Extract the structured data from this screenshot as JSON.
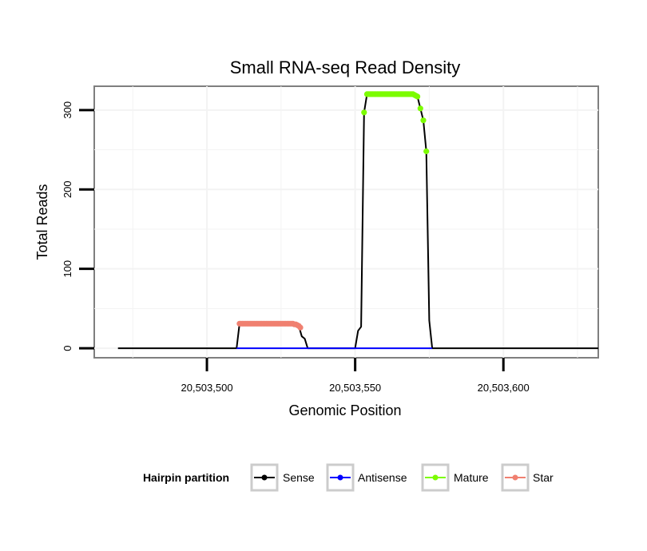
{
  "chart_data": {
    "type": "line",
    "title": "Small RNA-seq Read Density",
    "xlabel": "Genomic Position",
    "ylabel": "Total Reads",
    "xlim": [
      20503462,
      20503632
    ],
    "ylim": [
      -12,
      330
    ],
    "x_ticks": [
      20503500,
      20503550,
      20503600
    ],
    "x_tick_labels": [
      "20,503,500",
      "20,503,550",
      "20,503,600"
    ],
    "y_ticks": [
      0,
      100,
      200,
      300
    ],
    "y_tick_labels": [
      "0",
      "100",
      "200",
      "300"
    ],
    "grid": true,
    "legend": {
      "title": "Hairpin partition",
      "position": "bottom",
      "entries": [
        {
          "label": "Sense",
          "color": "#000000"
        },
        {
          "label": "Antisense",
          "color": "#0000ff"
        },
        {
          "label": "Mature",
          "color": "#7cfc00"
        },
        {
          "label": "Star",
          "color": "#f08070"
        }
      ]
    },
    "series": [
      {
        "name": "Sense",
        "color": "#000000",
        "x": [
          20503470,
          20503480,
          20503490,
          20503500,
          20503510,
          20503511,
          20503512,
          20503513,
          20503514,
          20503515,
          20503516,
          20503517,
          20503518,
          20503519,
          20503520,
          20503521,
          20503522,
          20503523,
          20503524,
          20503525,
          20503526,
          20503527,
          20503528,
          20503529,
          20503530,
          20503531,
          20503532,
          20503533,
          20503534,
          20503535,
          20503540,
          20503545,
          20503550,
          20503551,
          20503552,
          20503553,
          20503554,
          20503555,
          20503556,
          20503557,
          20503558,
          20503559,
          20503560,
          20503561,
          20503562,
          20503563,
          20503564,
          20503565,
          20503566,
          20503567,
          20503568,
          20503569,
          20503570,
          20503571,
          20503572,
          20503573,
          20503574,
          20503575,
          20503576,
          20503580,
          20503590,
          20503600,
          20503610,
          20503620,
          20503632
        ],
        "y": [
          0,
          0,
          0,
          0,
          0,
          31,
          31,
          31,
          31,
          31,
          31,
          31,
          31,
          31,
          31,
          31,
          31,
          31,
          31,
          31,
          31,
          31,
          31,
          31,
          30,
          28,
          15,
          12,
          0,
          0,
          0,
          0,
          0,
          22,
          27,
          297,
          320,
          320,
          320,
          320,
          320,
          320,
          320,
          320,
          320,
          320,
          320,
          320,
          320,
          320,
          320,
          320,
          319,
          317,
          302,
          287,
          248,
          35,
          0,
          0,
          0,
          0,
          0,
          0,
          0
        ]
      },
      {
        "name": "Antisense",
        "color": "#0000ff",
        "x": [
          20503510,
          20503576
        ],
        "y": [
          0,
          0
        ]
      },
      {
        "name": "Mature",
        "color": "#7cfc00",
        "points": [
          [
            20503553,
            297
          ],
          [
            20503554,
            320
          ],
          [
            20503554.5,
            320
          ],
          [
            20503555,
            320
          ],
          [
            20503555.5,
            320
          ],
          [
            20503556,
            320
          ],
          [
            20503556.5,
            320
          ],
          [
            20503557,
            320
          ],
          [
            20503557.5,
            320
          ],
          [
            20503558,
            320
          ],
          [
            20503558.5,
            320
          ],
          [
            20503559,
            320
          ],
          [
            20503559.5,
            320
          ],
          [
            20503560,
            320
          ],
          [
            20503560.5,
            320
          ],
          [
            20503561,
            320
          ],
          [
            20503561.5,
            320
          ],
          [
            20503562,
            320
          ],
          [
            20503562.5,
            320
          ],
          [
            20503563,
            320
          ],
          [
            20503563.5,
            320
          ],
          [
            20503564,
            320
          ],
          [
            20503564.5,
            320
          ],
          [
            20503565,
            320
          ],
          [
            20503565.5,
            320
          ],
          [
            20503566,
            320
          ],
          [
            20503566.5,
            320
          ],
          [
            20503567,
            320
          ],
          [
            20503567.5,
            320
          ],
          [
            20503568,
            320
          ],
          [
            20503568.5,
            320
          ],
          [
            20503569,
            320
          ],
          [
            20503569.5,
            320
          ],
          [
            20503570,
            319
          ],
          [
            20503570.5,
            318
          ],
          [
            20503571,
            317
          ],
          [
            20503572,
            302
          ],
          [
            20503573,
            287
          ],
          [
            20503574,
            248
          ]
        ]
      },
      {
        "name": "Star",
        "color": "#f08070",
        "points": [
          [
            20503511,
            31
          ],
          [
            20503511.5,
            31
          ],
          [
            20503512,
            31
          ],
          [
            20503512.5,
            31
          ],
          [
            20503513,
            31
          ],
          [
            20503513.5,
            31
          ],
          [
            20503514,
            31
          ],
          [
            20503514.5,
            31
          ],
          [
            20503515,
            31
          ],
          [
            20503515.5,
            31
          ],
          [
            20503516,
            31
          ],
          [
            20503516.5,
            31
          ],
          [
            20503517,
            31
          ],
          [
            20503517.5,
            31
          ],
          [
            20503518,
            31
          ],
          [
            20503518.5,
            31
          ],
          [
            20503519,
            31
          ],
          [
            20503519.5,
            31
          ],
          [
            20503520,
            31
          ],
          [
            20503520.5,
            31
          ],
          [
            20503521,
            31
          ],
          [
            20503521.5,
            31
          ],
          [
            20503522,
            31
          ],
          [
            20503522.5,
            31
          ],
          [
            20503523,
            31
          ],
          [
            20503523.5,
            31
          ],
          [
            20503524,
            31
          ],
          [
            20503524.5,
            31
          ],
          [
            20503525,
            31
          ],
          [
            20503525.5,
            31
          ],
          [
            20503526,
            31
          ],
          [
            20503526.5,
            31
          ],
          [
            20503527,
            31
          ],
          [
            20503527.5,
            31
          ],
          [
            20503528,
            31
          ],
          [
            20503528.5,
            31
          ],
          [
            20503529,
            31
          ],
          [
            20503529.5,
            30
          ],
          [
            20503530,
            30
          ],
          [
            20503530.5,
            29
          ],
          [
            20503531,
            28
          ],
          [
            20503531.5,
            26
          ]
        ]
      }
    ]
  }
}
